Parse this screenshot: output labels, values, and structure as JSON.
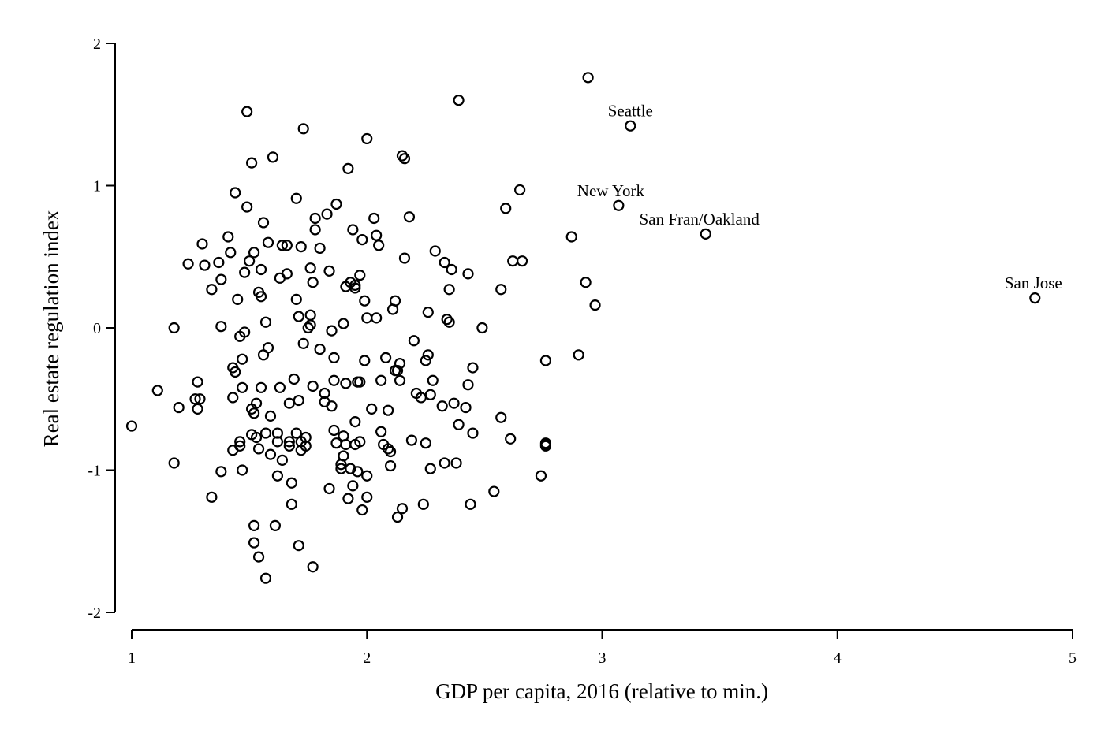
{
  "chart_data": {
    "type": "scatter",
    "title": "",
    "xlabel": "GDP per capita, 2016 (relative to min.)",
    "ylabel": "Real estate regulation index",
    "xlim": [
      1,
      5
    ],
    "ylim": [
      -2,
      2
    ],
    "x_ticks": [
      "1",
      "2",
      "3",
      "4",
      "5"
    ],
    "y_ticks": [
      "2",
      "1",
      "0",
      "-1",
      "-2"
    ],
    "grid": false,
    "legend": "none",
    "marker": "hollow-circle",
    "annotations": [
      {
        "text": "Seattle",
        "x": 3.12,
        "y": 1.42
      },
      {
        "text": "New York",
        "x": 3.07,
        "y": 0.86
      },
      {
        "text": "San Fran/Oakland",
        "x": 3.44,
        "y": 0.66
      },
      {
        "text": "San Jose",
        "x": 4.84,
        "y": 0.21
      }
    ],
    "series": [
      {
        "points": [
          [
            1.0,
            -0.69
          ],
          [
            1.11,
            -0.44
          ],
          [
            1.18,
            0.0
          ],
          [
            1.18,
            -0.95
          ],
          [
            1.2,
            -0.56
          ],
          [
            1.24,
            0.45
          ],
          [
            1.27,
            -0.5
          ],
          [
            1.28,
            -0.38
          ],
          [
            1.28,
            -0.57
          ],
          [
            1.29,
            -0.5
          ],
          [
            1.3,
            0.59
          ],
          [
            1.31,
            0.44
          ],
          [
            1.34,
            0.27
          ],
          [
            1.34,
            -1.19
          ],
          [
            1.37,
            0.46
          ],
          [
            1.38,
            0.34
          ],
          [
            1.38,
            0.01
          ],
          [
            1.38,
            -1.01
          ],
          [
            1.41,
            0.64
          ],
          [
            1.42,
            0.53
          ],
          [
            1.43,
            -0.28
          ],
          [
            1.43,
            -0.49
          ],
          [
            1.43,
            -0.86
          ],
          [
            1.44,
            0.95
          ],
          [
            1.44,
            -0.31
          ],
          [
            1.45,
            0.2
          ],
          [
            1.46,
            -0.06
          ],
          [
            1.46,
            -0.8
          ],
          [
            1.46,
            -0.83
          ],
          [
            1.47,
            -0.22
          ],
          [
            1.47,
            -0.42
          ],
          [
            1.47,
            -1.0
          ],
          [
            1.48,
            -0.03
          ],
          [
            1.48,
            0.39
          ],
          [
            1.49,
            0.85
          ],
          [
            1.49,
            1.52
          ],
          [
            1.5,
            0.47
          ],
          [
            1.51,
            -0.57
          ],
          [
            1.51,
            -0.75
          ],
          [
            1.51,
            1.16
          ],
          [
            1.52,
            0.53
          ],
          [
            1.52,
            -1.39
          ],
          [
            1.52,
            -1.51
          ],
          [
            1.52,
            -0.6
          ],
          [
            1.53,
            -0.53
          ],
          [
            1.53,
            -0.77
          ],
          [
            1.54,
            0.25
          ],
          [
            1.54,
            -0.85
          ],
          [
            1.54,
            -1.61
          ],
          [
            1.55,
            0.41
          ],
          [
            1.55,
            -0.42
          ],
          [
            1.55,
            0.22
          ],
          [
            1.56,
            -0.19
          ],
          [
            1.56,
            0.74
          ],
          [
            1.57,
            -1.76
          ],
          [
            1.57,
            0.04
          ],
          [
            1.57,
            -0.74
          ],
          [
            1.58,
            0.6
          ],
          [
            1.58,
            -0.14
          ],
          [
            1.59,
            -0.62
          ],
          [
            1.59,
            -0.89
          ],
          [
            1.6,
            1.2
          ],
          [
            1.61,
            -1.39
          ],
          [
            1.62,
            -0.74
          ],
          [
            1.62,
            -1.04
          ],
          [
            1.62,
            -0.8
          ],
          [
            1.63,
            0.35
          ],
          [
            1.63,
            -0.42
          ],
          [
            1.64,
            0.58
          ],
          [
            1.64,
            -0.93
          ],
          [
            1.66,
            0.58
          ],
          [
            1.66,
            0.38
          ],
          [
            1.67,
            -0.53
          ],
          [
            1.67,
            -0.8
          ],
          [
            1.67,
            -0.83
          ],
          [
            1.68,
            -1.09
          ],
          [
            1.68,
            -1.24
          ],
          [
            1.69,
            -0.36
          ],
          [
            1.7,
            0.2
          ],
          [
            1.7,
            -0.74
          ],
          [
            1.7,
            0.91
          ],
          [
            1.71,
            -1.53
          ],
          [
            1.71,
            -0.51
          ],
          [
            1.71,
            0.08
          ],
          [
            1.72,
            0.57
          ],
          [
            1.72,
            -0.8
          ],
          [
            1.72,
            -0.86
          ],
          [
            1.73,
            1.4
          ],
          [
            1.73,
            -0.11
          ],
          [
            1.74,
            -0.77
          ],
          [
            1.74,
            -0.83
          ],
          [
            1.75,
            -0.0
          ],
          [
            1.76,
            0.42
          ],
          [
            1.76,
            0.09
          ],
          [
            1.76,
            0.02
          ],
          [
            1.77,
            0.32
          ],
          [
            1.77,
            -0.41
          ],
          [
            1.77,
            -1.68
          ],
          [
            1.78,
            0.77
          ],
          [
            1.78,
            0.69
          ],
          [
            1.8,
            0.56
          ],
          [
            1.8,
            -0.15
          ],
          [
            1.82,
            -0.46
          ],
          [
            1.82,
            -0.52
          ],
          [
            1.83,
            0.8
          ],
          [
            1.84,
            0.4
          ],
          [
            1.84,
            -1.13
          ],
          [
            1.85,
            -0.55
          ],
          [
            1.85,
            -0.02
          ],
          [
            1.86,
            -0.37
          ],
          [
            1.86,
            -0.21
          ],
          [
            1.86,
            -0.72
          ],
          [
            1.87,
            0.87
          ],
          [
            1.87,
            -0.81
          ],
          [
            1.89,
            -0.96
          ],
          [
            1.89,
            -0.99
          ],
          [
            1.9,
            0.03
          ],
          [
            1.9,
            -0.76
          ],
          [
            1.9,
            -0.9
          ],
          [
            1.91,
            0.29
          ],
          [
            1.91,
            -0.39
          ],
          [
            1.91,
            -0.82
          ],
          [
            1.92,
            -1.2
          ],
          [
            1.92,
            1.12
          ],
          [
            1.93,
            0.32
          ],
          [
            1.93,
            -0.99
          ],
          [
            1.94,
            0.69
          ],
          [
            1.94,
            -1.11
          ],
          [
            1.95,
            0.3
          ],
          [
            1.95,
            -0.82
          ],
          [
            1.95,
            -0.66
          ],
          [
            1.95,
            0.28
          ],
          [
            1.96,
            -0.38
          ],
          [
            1.96,
            -1.01
          ],
          [
            1.97,
            -0.38
          ],
          [
            1.97,
            0.37
          ],
          [
            1.97,
            -0.8
          ],
          [
            1.98,
            0.62
          ],
          [
            1.98,
            -1.28
          ],
          [
            1.99,
            0.19
          ],
          [
            1.99,
            -0.23
          ],
          [
            2.0,
            1.33
          ],
          [
            2.0,
            -1.19
          ],
          [
            2.0,
            -1.04
          ],
          [
            2.0,
            0.07
          ],
          [
            2.02,
            -0.57
          ],
          [
            2.03,
            0.77
          ],
          [
            2.04,
            0.65
          ],
          [
            2.04,
            0.07
          ],
          [
            2.05,
            0.58
          ],
          [
            2.06,
            -0.73
          ],
          [
            2.06,
            -0.37
          ],
          [
            2.07,
            -0.82
          ],
          [
            2.08,
            -0.21
          ],
          [
            2.09,
            -0.58
          ],
          [
            2.09,
            -0.85
          ],
          [
            2.1,
            -0.87
          ],
          [
            2.1,
            -0.97
          ],
          [
            2.11,
            0.13
          ],
          [
            2.12,
            0.19
          ],
          [
            2.12,
            -0.3
          ],
          [
            2.13,
            -0.3
          ],
          [
            2.13,
            -1.33
          ],
          [
            2.14,
            -0.37
          ],
          [
            2.14,
            -0.25
          ],
          [
            2.15,
            1.21
          ],
          [
            2.15,
            -1.27
          ],
          [
            2.16,
            1.19
          ],
          [
            2.16,
            0.49
          ],
          [
            2.18,
            0.78
          ],
          [
            2.19,
            -0.79
          ],
          [
            2.2,
            -0.09
          ],
          [
            2.21,
            -0.46
          ],
          [
            2.23,
            -0.49
          ],
          [
            2.24,
            -1.24
          ],
          [
            2.25,
            -0.81
          ],
          [
            2.25,
            -0.23
          ],
          [
            2.26,
            0.11
          ],
          [
            2.26,
            -0.19
          ],
          [
            2.27,
            -0.47
          ],
          [
            2.27,
            -0.99
          ],
          [
            2.28,
            -0.37
          ],
          [
            2.29,
            0.54
          ],
          [
            2.32,
            -0.55
          ],
          [
            2.33,
            -0.95
          ],
          [
            2.33,
            0.46
          ],
          [
            2.34,
            0.06
          ],
          [
            2.35,
            0.04
          ],
          [
            2.35,
            0.27
          ],
          [
            2.36,
            0.41
          ],
          [
            2.37,
            -0.53
          ],
          [
            2.38,
            -0.95
          ],
          [
            2.39,
            -0.68
          ],
          [
            2.39,
            1.6
          ],
          [
            2.42,
            -0.56
          ],
          [
            2.43,
            0.38
          ],
          [
            2.43,
            -0.4
          ],
          [
            2.44,
            -1.24
          ],
          [
            2.45,
            -0.28
          ],
          [
            2.45,
            -0.74
          ],
          [
            2.49,
            0.0
          ],
          [
            2.54,
            -1.15
          ],
          [
            2.57,
            0.27
          ],
          [
            2.57,
            -0.63
          ],
          [
            2.59,
            0.84
          ],
          [
            2.61,
            -0.78
          ],
          [
            2.62,
            0.47
          ],
          [
            2.65,
            0.97
          ],
          [
            2.66,
            0.47
          ],
          [
            2.74,
            -1.04
          ],
          [
            2.76,
            -0.23
          ],
          [
            2.76,
            -0.82
          ],
          [
            2.76,
            -0.83
          ],
          [
            2.76,
            -0.81
          ],
          [
            2.87,
            0.64
          ],
          [
            2.9,
            -0.19
          ],
          [
            2.93,
            0.32
          ],
          [
            2.94,
            1.76
          ],
          [
            2.97,
            0.16
          ],
          [
            3.07,
            0.86
          ],
          [
            3.12,
            1.42
          ],
          [
            3.44,
            0.66
          ],
          [
            4.84,
            0.21
          ]
        ]
      }
    ]
  }
}
